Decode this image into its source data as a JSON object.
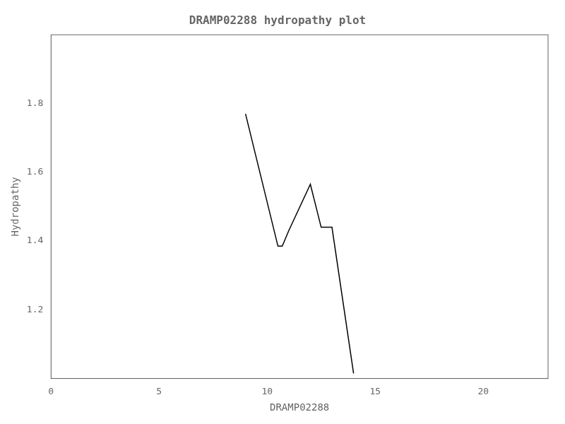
{
  "chart_data": {
    "type": "line",
    "title": "DRAMP02288 hydropathy plot",
    "xlabel": "DRAMP02288",
    "ylabel": "Hydropathy",
    "x": [
      9.0,
      10.5,
      10.7,
      11.0,
      12.0,
      12.5,
      13.0,
      14.0
    ],
    "values": [
      1.77,
      1.385,
      1.385,
      1.43,
      1.565,
      1.44,
      1.44,
      1.015
    ],
    "color": "#000000",
    "xlim": [
      0,
      23
    ],
    "ylim": [
      1.0,
      2.0
    ],
    "xticks": [
      0,
      5,
      10,
      15,
      20
    ],
    "yticks": [
      1.2,
      1.4,
      1.6,
      1.8
    ],
    "grid": false
  }
}
